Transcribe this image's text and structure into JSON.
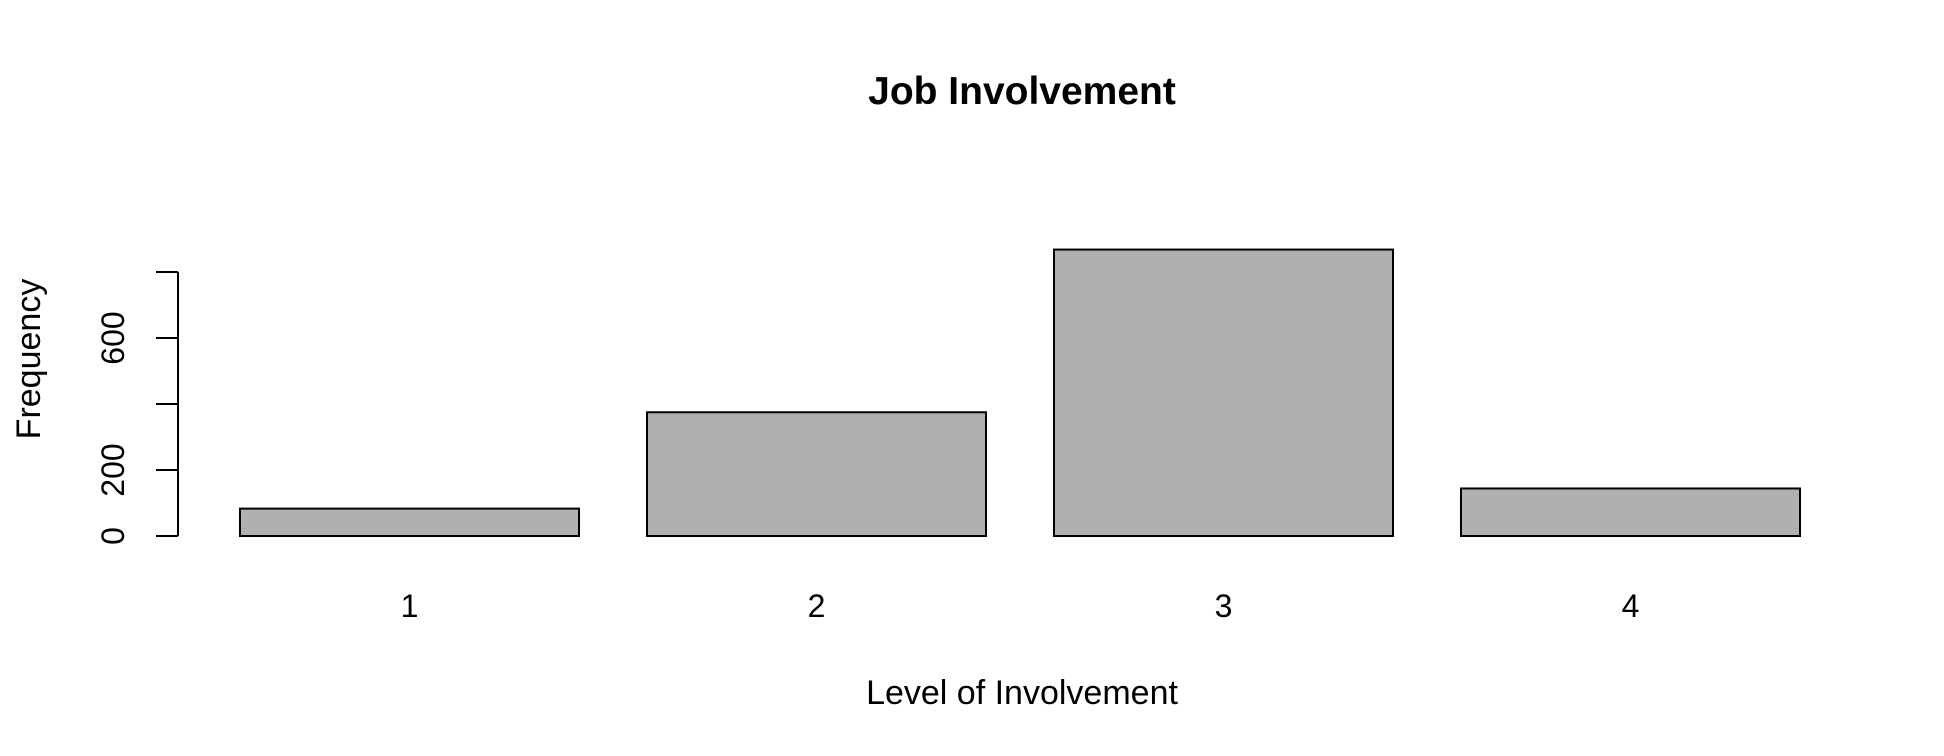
{
  "chart_data": {
    "type": "bar",
    "title": "Job Involvement",
    "xlabel": "Level of Involvement",
    "ylabel": "Frequency",
    "categories": [
      "1",
      "2",
      "3",
      "4"
    ],
    "values": [
      83,
      375,
      868,
      144
    ],
    "ylim": [
      0,
      868
    ],
    "yticks": [
      0,
      200,
      400,
      600,
      800
    ],
    "ytick_labels": [
      "0",
      "200",
      "",
      "600",
      ""
    ],
    "grid": false,
    "colors": {
      "bar_fill": "#b0b0b0",
      "bar_stroke": "#000000"
    }
  }
}
